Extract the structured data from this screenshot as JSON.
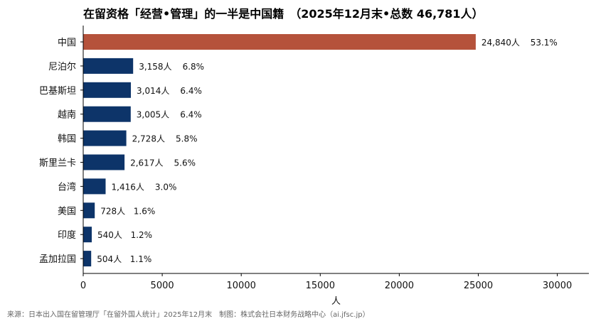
{
  "chart_data": {
    "type": "bar",
    "orientation": "horizontal",
    "title": "在留资格「经营•管理」的一半是中国籍　（2025年12月末•总数 46,781人）",
    "xlabel": "人",
    "ylabel": "",
    "xlim": [
      0,
      32000
    ],
    "xticks": [
      "0",
      "5000",
      "10000",
      "15000",
      "20000",
      "25000",
      "30000"
    ],
    "grid": false,
    "categories": [
      "中国",
      "尼泊尔",
      "巴基斯坦",
      "越南",
      "韩国",
      "斯里兰卡",
      "台湾",
      "美国",
      "印度",
      "孟加拉国"
    ],
    "values": [
      24840,
      3158,
      3014,
      3005,
      2728,
      2617,
      1416,
      728,
      540,
      504
    ],
    "value_labels": [
      "24,840人",
      "3,158人",
      "3,014人",
      "3,005人",
      "2,728人",
      "2,617人",
      "1,416人",
      "728人",
      "540人",
      "504人"
    ],
    "percent_labels": [
      "53.1%",
      "6.8%",
      "6.4%",
      "6.4%",
      "5.8%",
      "5.6%",
      "3.0%",
      "1.6%",
      "1.2%",
      "1.1%"
    ],
    "colors": {
      "highlight": "#b5523b",
      "default": "#0d3469"
    },
    "highlight_index": 0
  },
  "source_note": "来源：日本出入国在留管理厅「在留外国人统计」2025年12月末　制图：株式会社日本财务战略中心（ai.jfsc.jp）"
}
